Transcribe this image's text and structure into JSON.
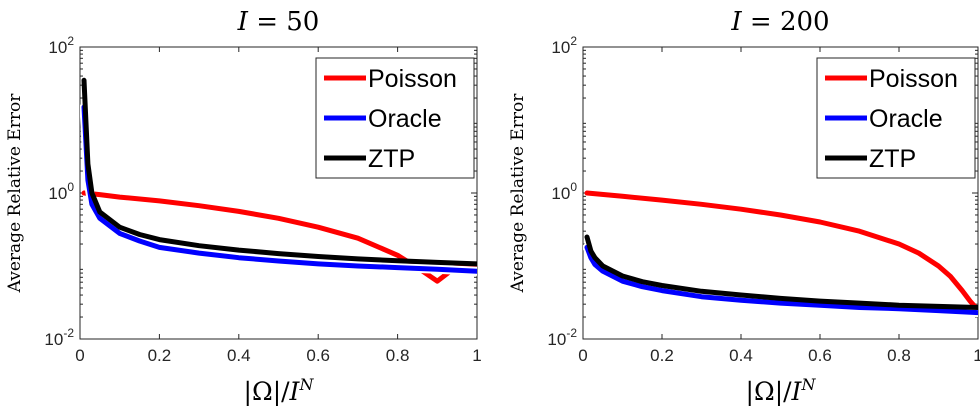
{
  "chart_data": [
    {
      "type": "line",
      "title": "I = 50",
      "xlabel": "|Ω|/I^N",
      "ylabel": "Average Relative Error",
      "yscale": "log",
      "xlim": [
        0,
        1
      ],
      "ylim": [
        0.01,
        100
      ],
      "xticks": [
        "0",
        "0.2",
        "0.4",
        "0.6",
        "0.8",
        "1"
      ],
      "yticks": [
        {
          "base": "10",
          "exp": "-2"
        },
        {
          "base": "10",
          "exp": "0"
        },
        {
          "base": "10",
          "exp": "2"
        }
      ],
      "legend_position": "top-right",
      "grid": false,
      "series": [
        {
          "name": "Poisson",
          "color": "#ff0000",
          "x": [
            0.01,
            0.05,
            0.1,
            0.2,
            0.3,
            0.4,
            0.5,
            0.6,
            0.7,
            0.8,
            0.85,
            0.9,
            0.95,
            1.0
          ],
          "y": [
            1.0,
            0.95,
            0.88,
            0.78,
            0.67,
            0.56,
            0.45,
            0.34,
            0.24,
            0.14,
            0.095,
            0.062,
            0.1,
            0.1
          ]
        },
        {
          "name": "Oracle",
          "color": "#0000ff",
          "x": [
            0.01,
            0.02,
            0.03,
            0.05,
            0.1,
            0.15,
            0.2,
            0.3,
            0.4,
            0.5,
            0.6,
            0.7,
            0.8,
            0.9,
            1.0
          ],
          "y": [
            15,
            1.5,
            0.7,
            0.45,
            0.28,
            0.22,
            0.18,
            0.15,
            0.13,
            0.117,
            0.107,
            0.1,
            0.095,
            0.09,
            0.085
          ]
        },
        {
          "name": "ZTP",
          "color": "#000000",
          "x": [
            0.01,
            0.02,
            0.03,
            0.05,
            0.1,
            0.15,
            0.2,
            0.3,
            0.4,
            0.5,
            0.6,
            0.7,
            0.8,
            0.9,
            1.0
          ],
          "y": [
            35,
            2.5,
            1.0,
            0.55,
            0.34,
            0.27,
            0.23,
            0.19,
            0.165,
            0.148,
            0.135,
            0.125,
            0.118,
            0.112,
            0.107
          ]
        }
      ]
    },
    {
      "type": "line",
      "title": "I = 200",
      "xlabel": "|Ω|/I^N",
      "ylabel": "Average Relative Error",
      "yscale": "log",
      "xlim": [
        0,
        1
      ],
      "ylim": [
        0.01,
        100
      ],
      "xticks": [
        "0",
        "0.2",
        "0.4",
        "0.6",
        "0.8",
        "1"
      ],
      "yticks": [
        {
          "base": "10",
          "exp": "-2"
        },
        {
          "base": "10",
          "exp": "0"
        },
        {
          "base": "10",
          "exp": "2"
        }
      ],
      "legend_position": "top-right",
      "grid": false,
      "series": [
        {
          "name": "Poisson",
          "color": "#ff0000",
          "x": [
            0.01,
            0.1,
            0.2,
            0.3,
            0.4,
            0.5,
            0.6,
            0.7,
            0.8,
            0.85,
            0.9,
            0.93,
            0.96,
            0.98,
            1.0
          ],
          "y": [
            1.0,
            0.9,
            0.8,
            0.7,
            0.6,
            0.5,
            0.4,
            0.3,
            0.2,
            0.15,
            0.1,
            0.072,
            0.046,
            0.033,
            0.025
          ]
        },
        {
          "name": "Oracle",
          "color": "#0000ff",
          "x": [
            0.01,
            0.02,
            0.03,
            0.05,
            0.1,
            0.15,
            0.2,
            0.3,
            0.4,
            0.5,
            0.6,
            0.7,
            0.8,
            0.9,
            1.0
          ],
          "y": [
            0.18,
            0.13,
            0.105,
            0.085,
            0.062,
            0.052,
            0.046,
            0.038,
            0.034,
            0.031,
            0.029,
            0.027,
            0.026,
            0.0245,
            0.023
          ]
        },
        {
          "name": "ZTP",
          "color": "#000000",
          "x": [
            0.01,
            0.02,
            0.03,
            0.05,
            0.1,
            0.15,
            0.2,
            0.3,
            0.4,
            0.5,
            0.6,
            0.7,
            0.8,
            0.9,
            1.0
          ],
          "y": [
            0.25,
            0.16,
            0.13,
            0.1,
            0.073,
            0.061,
            0.054,
            0.045,
            0.04,
            0.036,
            0.033,
            0.031,
            0.029,
            0.028,
            0.027
          ]
        }
      ]
    }
  ]
}
